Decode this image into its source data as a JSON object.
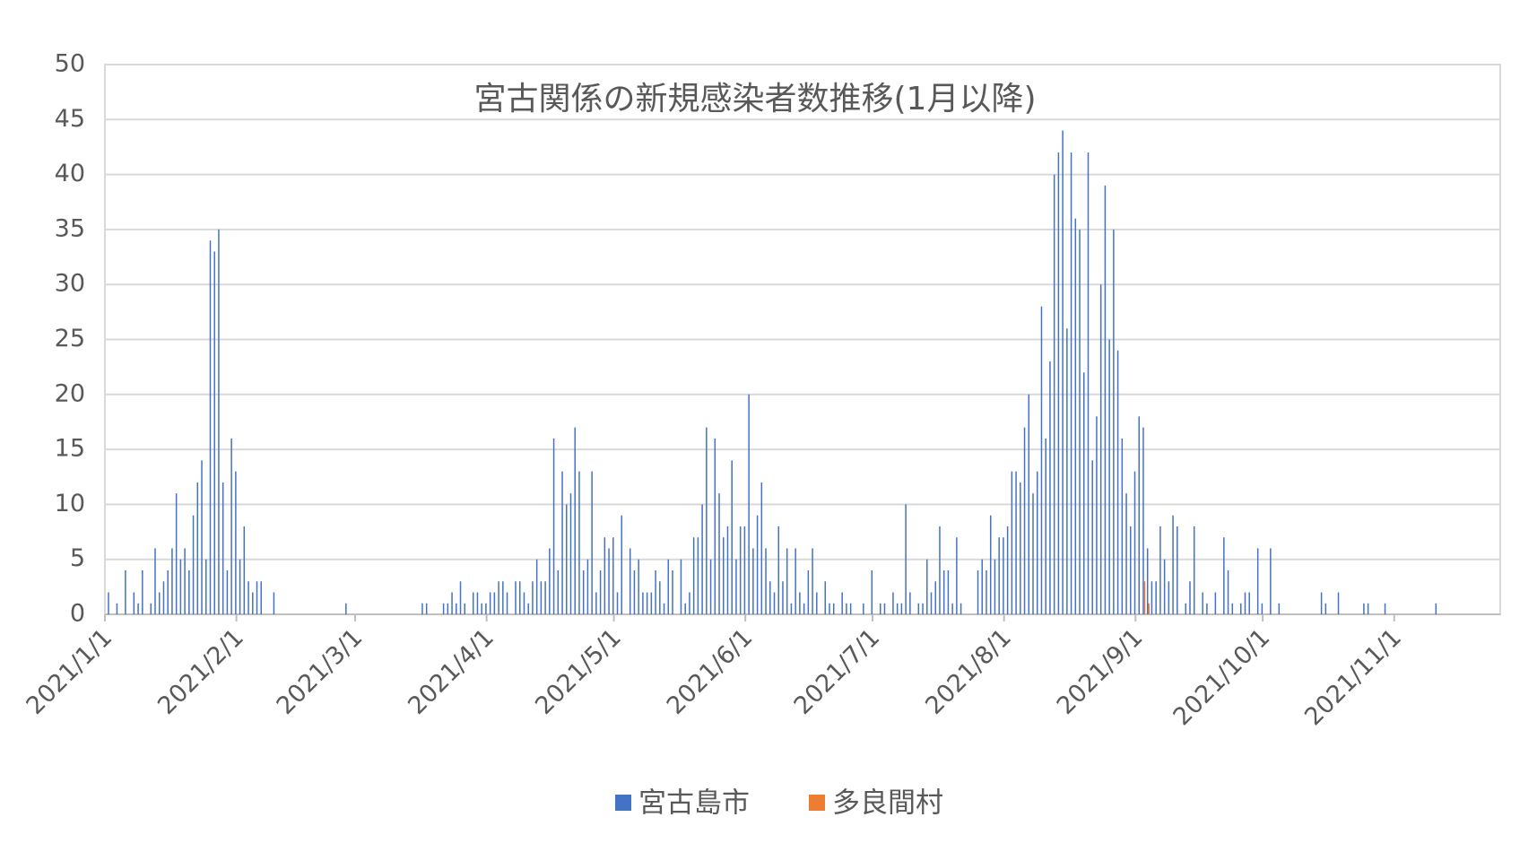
{
  "chart_data": {
    "type": "bar",
    "title": "宮古関係の新規感染者数推移(1月以降)",
    "xlim": [
      "2021/1/1",
      "2021/11/26"
    ],
    "xticks": [
      "2021/1/1",
      "2021/2/1",
      "2021/3/1",
      "2021/4/1",
      "2021/5/1",
      "2021/6/1",
      "2021/7/1",
      "2021/8/1",
      "2021/9/1",
      "2021/10/1",
      "2021/11/1"
    ],
    "ylim": [
      0,
      50
    ],
    "yticks": [
      0,
      5,
      10,
      15,
      20,
      25,
      30,
      35,
      40,
      45,
      50
    ],
    "grid": true,
    "series": [
      {
        "name": "宮古島市",
        "color": "#4472c4",
        "x": [
          "2021/1/2",
          "2021/1/4",
          "2021/1/6",
          "2021/1/8",
          "2021/1/9",
          "2021/1/10",
          "2021/1/12",
          "2021/1/13",
          "2021/1/14",
          "2021/1/15",
          "2021/1/16",
          "2021/1/17",
          "2021/1/18",
          "2021/1/19",
          "2021/1/20",
          "2021/1/21",
          "2021/1/22",
          "2021/1/23",
          "2021/1/24",
          "2021/1/25",
          "2021/1/26",
          "2021/1/27",
          "2021/1/28",
          "2021/1/29",
          "2021/1/30",
          "2021/1/31",
          "2021/2/1",
          "2021/2/2",
          "2021/2/3",
          "2021/2/4",
          "2021/2/5",
          "2021/2/6",
          "2021/2/7",
          "2021/2/10",
          "2021/2/27",
          "2021/3/17",
          "2021/3/18",
          "2021/3/22",
          "2021/3/23",
          "2021/3/24",
          "2021/3/25",
          "2021/3/26",
          "2021/3/27",
          "2021/3/29",
          "2021/3/30",
          "2021/3/31",
          "2021/4/1",
          "2021/4/2",
          "2021/4/3",
          "2021/4/4",
          "2021/4/5",
          "2021/4/6",
          "2021/4/8",
          "2021/4/9",
          "2021/4/10",
          "2021/4/11",
          "2021/4/12",
          "2021/4/13",
          "2021/4/14",
          "2021/4/15",
          "2021/4/16",
          "2021/4/17",
          "2021/4/18",
          "2021/4/19",
          "2021/4/20",
          "2021/4/21",
          "2021/4/22",
          "2021/4/23",
          "2021/4/24",
          "2021/4/25",
          "2021/4/26",
          "2021/4/27",
          "2021/4/28",
          "2021/4/29",
          "2021/4/30",
          "2021/5/1",
          "2021/5/2",
          "2021/5/3",
          "2021/5/5",
          "2021/5/6",
          "2021/5/7",
          "2021/5/8",
          "2021/5/9",
          "2021/5/10",
          "2021/5/11",
          "2021/5/12",
          "2021/5/13",
          "2021/5/14",
          "2021/5/15",
          "2021/5/17",
          "2021/5/18",
          "2021/5/19",
          "2021/5/20",
          "2021/5/21",
          "2021/5/22",
          "2021/5/23",
          "2021/5/24",
          "2021/5/25",
          "2021/5/26",
          "2021/5/27",
          "2021/5/28",
          "2021/5/29",
          "2021/5/30",
          "2021/5/31",
          "2021/6/1",
          "2021/6/2",
          "2021/6/3",
          "2021/6/4",
          "2021/6/5",
          "2021/6/6",
          "2021/6/7",
          "2021/6/8",
          "2021/6/9",
          "2021/6/10",
          "2021/6/11",
          "2021/6/12",
          "2021/6/13",
          "2021/6/14",
          "2021/6/15",
          "2021/6/16",
          "2021/6/17",
          "2021/6/18",
          "2021/6/20",
          "2021/6/21",
          "2021/6/22",
          "2021/6/24",
          "2021/6/25",
          "2021/6/26",
          "2021/6/29",
          "2021/7/1",
          "2021/7/3",
          "2021/7/4",
          "2021/7/6",
          "2021/7/7",
          "2021/7/8",
          "2021/7/9",
          "2021/7/10",
          "2021/7/12",
          "2021/7/13",
          "2021/7/14",
          "2021/7/15",
          "2021/7/16",
          "2021/7/17",
          "2021/7/18",
          "2021/7/19",
          "2021/7/20",
          "2021/7/21",
          "2021/7/22",
          "2021/7/26",
          "2021/7/27",
          "2021/7/28",
          "2021/7/29",
          "2021/7/30",
          "2021/7/31",
          "2021/8/1",
          "2021/8/2",
          "2021/8/3",
          "2021/8/4",
          "2021/8/5",
          "2021/8/6",
          "2021/8/7",
          "2021/8/8",
          "2021/8/9",
          "2021/8/10",
          "2021/8/11",
          "2021/8/12",
          "2021/8/13",
          "2021/8/14",
          "2021/8/15",
          "2021/8/16",
          "2021/8/17",
          "2021/8/18",
          "2021/8/19",
          "2021/8/20",
          "2021/8/21",
          "2021/8/22",
          "2021/8/23",
          "2021/8/24",
          "2021/8/25",
          "2021/8/26",
          "2021/8/27",
          "2021/8/28",
          "2021/8/29",
          "2021/8/30",
          "2021/8/31",
          "2021/9/1",
          "2021/9/2",
          "2021/9/3",
          "2021/9/4",
          "2021/9/5",
          "2021/9/6",
          "2021/9/7",
          "2021/9/8",
          "2021/9/9",
          "2021/9/10",
          "2021/9/11",
          "2021/9/13",
          "2021/9/14",
          "2021/9/15",
          "2021/9/17",
          "2021/9/18",
          "2021/9/20",
          "2021/9/22",
          "2021/9/23",
          "2021/9/24",
          "2021/9/26",
          "2021/9/27",
          "2021/9/28",
          "2021/9/30",
          "2021/10/1",
          "2021/10/3",
          "2021/10/5",
          "2021/10/15",
          "2021/10/16",
          "2021/10/19",
          "2021/10/25",
          "2021/10/26",
          "2021/10/30",
          "2021/11/11"
        ],
        "values": [
          2,
          1,
          4,
          2,
          1,
          4,
          1,
          6,
          2,
          3,
          4,
          6,
          11,
          5,
          6,
          4,
          9,
          12,
          14,
          5,
          34,
          33,
          35,
          12,
          4,
          16,
          13,
          5,
          8,
          3,
          2,
          3,
          3,
          2,
          1,
          1,
          1,
          1,
          1,
          2,
          1,
          3,
          1,
          2,
          2,
          1,
          1,
          2,
          2,
          3,
          3,
          2,
          3,
          3,
          2,
          1,
          3,
          5,
          3,
          3,
          6,
          16,
          4,
          13,
          10,
          11,
          17,
          13,
          4,
          5,
          13,
          2,
          4,
          7,
          6,
          7,
          2,
          9,
          6,
          4,
          5,
          2,
          2,
          2,
          4,
          3,
          1,
          5,
          4,
          5,
          1,
          2,
          7,
          7,
          10,
          17,
          5,
          16,
          11,
          7,
          8,
          14,
          5,
          8,
          8,
          20,
          6,
          9,
          12,
          6,
          3,
          2,
          8,
          3,
          6,
          1,
          6,
          2,
          1,
          4,
          6,
          2,
          3,
          1,
          1,
          2,
          1,
          1,
          1,
          4,
          1,
          1,
          2,
          1,
          1,
          10,
          2,
          1,
          1,
          5,
          2,
          3,
          8,
          4,
          4,
          1,
          7,
          1,
          4,
          5,
          4,
          9,
          5,
          7,
          7,
          8,
          13,
          13,
          12,
          17,
          20,
          11,
          13,
          28,
          16,
          23,
          40,
          42,
          44,
          26,
          42,
          36,
          35,
          22,
          42,
          14,
          18,
          30,
          39,
          25,
          35,
          24,
          16,
          11,
          8,
          13,
          18,
          17,
          6,
          3,
          3,
          8,
          5,
          3,
          9,
          8,
          1,
          3,
          8,
          2,
          1,
          2,
          7,
          4,
          1,
          1,
          2,
          2,
          6,
          1,
          6,
          1,
          2,
          1,
          2,
          1,
          1,
          1,
          1
        ]
      },
      {
        "name": "多良間村",
        "color": "#ed7d31",
        "x": [
          "2021/9/3",
          "2021/9/4"
        ],
        "values": [
          3,
          1
        ]
      }
    ]
  }
}
